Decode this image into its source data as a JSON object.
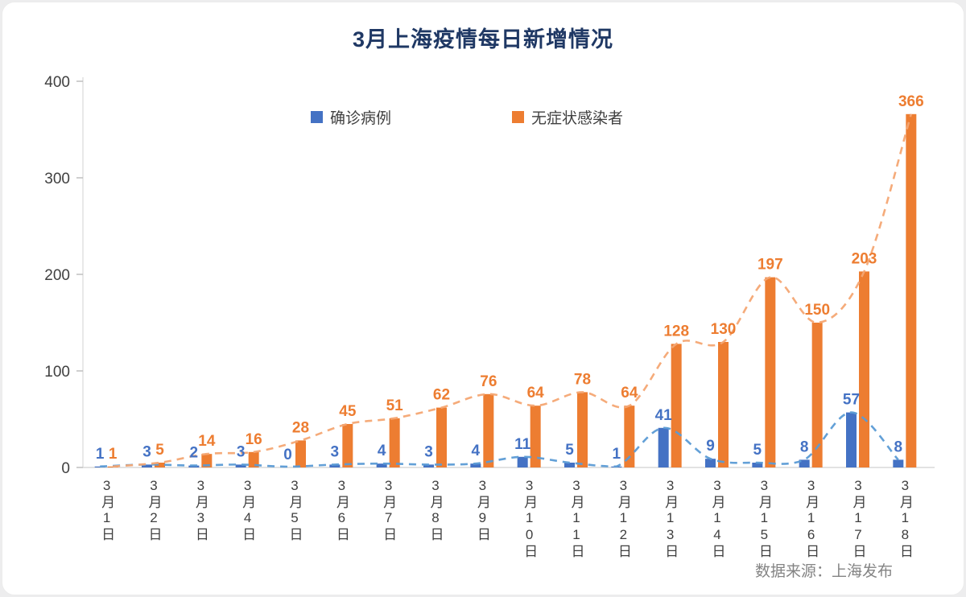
{
  "title": "3月上海疫情每日新增情况",
  "source": "数据来源：上海发布",
  "colors": {
    "title": "#1f3864",
    "confirmed_bar": "#4472C4",
    "confirmed_line": "#5B9BD5",
    "asymptomatic_bar": "#ED7D31",
    "asymptomatic_line": "#F4A673",
    "axis": "#d9d9d9",
    "tick": "#bfbfbf"
  },
  "chart_data": {
    "type": "bar",
    "title": "3月上海疫情每日新增情况",
    "categories": [
      "3月1日",
      "3月2日",
      "3月3日",
      "3月4日",
      "3月5日",
      "3月6日",
      "3月7日",
      "3月8日",
      "3月9日",
      "3月10日",
      "3月11日",
      "3月12日",
      "3月13日",
      "3月14日",
      "3月15日",
      "3月16日",
      "3月17日",
      "3月18日"
    ],
    "series": [
      {
        "name": "确诊病例",
        "color": "#4472C4",
        "line_color": "#5B9BD5",
        "label_color": "#4472C4",
        "values": [
          1,
          3,
          2,
          3,
          0,
          3,
          4,
          3,
          4,
          11,
          5,
          1,
          41,
          9,
          5,
          8,
          57,
          8
        ]
      },
      {
        "name": "无症状感染者",
        "color": "#ED7D31",
        "line_color": "#F4A673",
        "label_color": "#ED7D31",
        "values": [
          1,
          5,
          14,
          16,
          28,
          45,
          51,
          62,
          76,
          64,
          78,
          64,
          128,
          130,
          197,
          150,
          203,
          366
        ]
      }
    ],
    "xlabel": "",
    "ylabel": "",
    "ylim": [
      0,
      400
    ],
    "yticks": [
      0,
      100,
      200,
      300,
      400
    ],
    "grid": false,
    "legend_position": "top-inside",
    "trend_lines": "dashed smoothed lines over both series"
  }
}
